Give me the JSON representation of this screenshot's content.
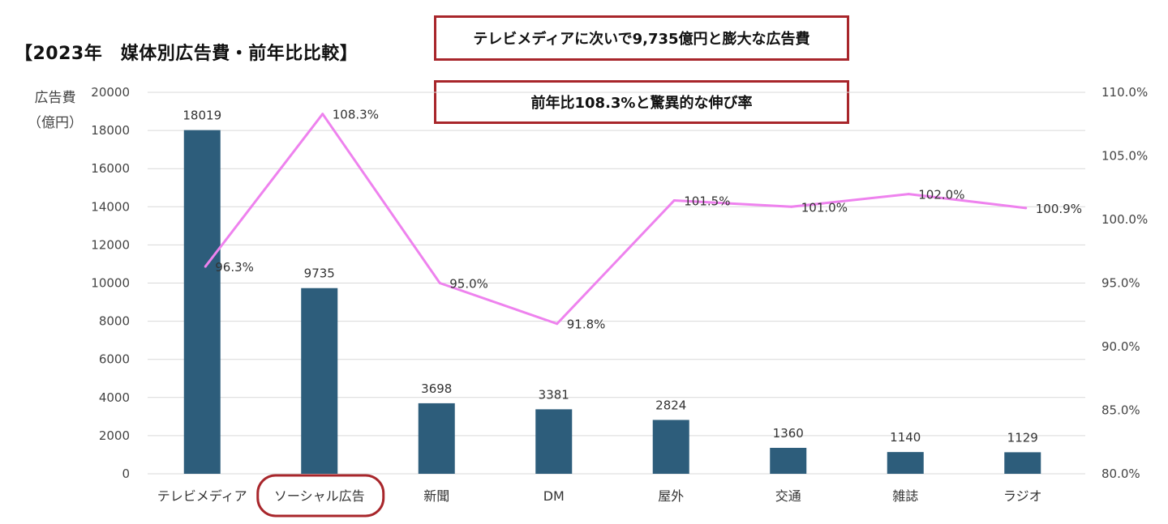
{
  "title": "【2023年　媒体別広告費・前年比比較】",
  "callouts": [
    "テレビメディアに次いで9,735億円と膨大な広告費",
    "前年比108.3%と驚異的な伸び率"
  ],
  "colors": {
    "bar": "#2d5d7b",
    "line": "#ee82ee",
    "highlight": "#a8262b",
    "grid": "#d9d9d9"
  },
  "chart_data": {
    "type": "bar",
    "title": "【2023年　媒体別広告費・前年比比較】",
    "ylabel": "広告費（億円）",
    "categories": [
      "テレビメディア",
      "ソーシャル広告",
      "新聞",
      "DM",
      "屋外",
      "交通",
      "雑誌",
      "ラジオ"
    ],
    "bar_values": [
      18019,
      9735,
      3698,
      3381,
      2824,
      1360,
      1140,
      1129
    ],
    "line_values": [
      96.3,
      108.3,
      95.0,
      91.8,
      101.5,
      101.0,
      102.0,
      100.9
    ],
    "line_labels": [
      "96.3%",
      "108.3%",
      "95.0%",
      "91.8%",
      "101.5%",
      "101.0%",
      "102.0%",
      "100.9%"
    ],
    "ylim": [
      0,
      20000
    ],
    "yticks": [
      "0",
      "2000",
      "4000",
      "6000",
      "8000",
      "10000",
      "12000",
      "14000",
      "16000",
      "18000",
      "20000"
    ],
    "y2lim": [
      80,
      110
    ],
    "y2ticks": [
      "80.0%",
      "85.0%",
      "90.0%",
      "95.0%",
      "100.0%",
      "105.0%",
      "110.0%"
    ],
    "grid": true,
    "highlighted_category": "ソーシャル広告"
  }
}
